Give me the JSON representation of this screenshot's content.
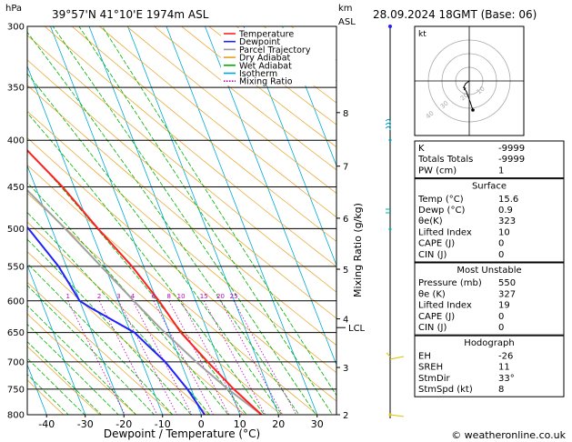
{
  "header": {
    "location": "39°57'N  41°10'E  1974m  ASL",
    "datetime": "28.09.2024  18GMT  (Base: 06)",
    "hpa_label": "hPa",
    "km_label": "km",
    "asl_label": "ASL"
  },
  "footer": {
    "copyright": "© weatheronline.co.uk"
  },
  "chart_data": {
    "type": "skew-t",
    "xlabel": "Dewpoint / Temperature (°C)",
    "right_axis_label": "Mixing Ratio (g/kg)",
    "x_range": [
      -45,
      35
    ],
    "p_range": [
      300,
      800
    ],
    "x_ticks": [
      -40,
      -30,
      -20,
      -10,
      0,
      10,
      20,
      30
    ],
    "pressure_levels": [
      300,
      350,
      400,
      450,
      500,
      550,
      600,
      650,
      700,
      750,
      800
    ],
    "km_ticks": [
      {
        "label": "8",
        "p": 373
      },
      {
        "label": "7",
        "p": 427
      },
      {
        "label": "6",
        "p": 487
      },
      {
        "label": "5",
        "p": 554
      },
      {
        "label": "4",
        "p": 628
      },
      {
        "label": "3",
        "p": 710
      },
      {
        "label": "2",
        "p": 800
      }
    ],
    "lcl": {
      "label": "LCL",
      "p": 642
    },
    "mixing_ratio_labels": [
      "1",
      "2",
      "3",
      "4",
      "6",
      "8",
      "10",
      "15",
      "20",
      "25"
    ],
    "legend": [
      {
        "name": "Temperature",
        "color": "#ff2020",
        "style": "solid"
      },
      {
        "name": "Dewpoint",
        "color": "#2020ff",
        "style": "solid"
      },
      {
        "name": "Parcel Trajectory",
        "color": "#999999",
        "style": "solid"
      },
      {
        "name": "Dry Adiabat",
        "color": "#e8a020",
        "style": "solid"
      },
      {
        "name": "Wet Adiabat",
        "color": "#00b000",
        "style": "solid"
      },
      {
        "name": "Isotherm",
        "color": "#00a8d8",
        "style": "solid"
      },
      {
        "name": "Mixing Ratio",
        "color": "#c000c0",
        "style": "dotted"
      }
    ],
    "legend_placement": "top-right of plot",
    "temperature": [
      {
        "p": 800,
        "t": 15.6
      },
      {
        "p": 750,
        "t": 11
      },
      {
        "p": 700,
        "t": 7
      },
      {
        "p": 650,
        "t": 3
      },
      {
        "p": 600,
        "t": 0.5
      },
      {
        "p": 550,
        "t": -3
      },
      {
        "p": 500,
        "t": -8
      },
      {
        "p": 450,
        "t": -13
      },
      {
        "p": 400,
        "t": -20
      },
      {
        "p": 350,
        "t": -28
      },
      {
        "p": 300,
        "t": -37
      }
    ],
    "dewpoint": [
      {
        "p": 800,
        "t": 0.9
      },
      {
        "p": 750,
        "t": -1
      },
      {
        "p": 700,
        "t": -4
      },
      {
        "p": 670,
        "t": -7
      },
      {
        "p": 650,
        "t": -9
      },
      {
        "p": 610,
        "t": -18
      },
      {
        "p": 600,
        "t": -20
      },
      {
        "p": 550,
        "t": -22
      },
      {
        "p": 500,
        "t": -26
      },
      {
        "p": 450,
        "t": -32
      },
      {
        "p": 400,
        "t": -40
      },
      {
        "p": 350,
        "t": -43
      },
      {
        "p": 300,
        "t": -50
      }
    ],
    "parcel": [
      {
        "p": 800,
        "t": 15.6
      },
      {
        "p": 750,
        "t": 9.5
      },
      {
        "p": 700,
        "t": 4
      },
      {
        "p": 642,
        "t": -2
      },
      {
        "p": 600,
        "t": -6
      },
      {
        "p": 550,
        "t": -11
      },
      {
        "p": 500,
        "t": -16.5
      },
      {
        "p": 450,
        "t": -23
      },
      {
        "p": 400,
        "t": -30.5
      },
      {
        "p": 350,
        "t": -39
      },
      {
        "p": 300,
        "t": -48
      }
    ],
    "grid": true
  },
  "hodograph": {
    "unit": "kt",
    "ring_labels": [
      "10",
      "20",
      "30",
      "40"
    ]
  },
  "indices": {
    "rows": [
      {
        "label": "K",
        "value": "-9999"
      },
      {
        "label": "Totals Totals",
        "value": "-9999"
      },
      {
        "label": "PW (cm)",
        "value": "1"
      }
    ]
  },
  "surface": {
    "title": "Surface",
    "rows": [
      {
        "label": "Temp (°C)",
        "value": "15.6"
      },
      {
        "label": "Dewp (°C)",
        "value": "0.9"
      },
      {
        "label": "θe(K)",
        "value": "323"
      },
      {
        "label": "Lifted Index",
        "value": "10"
      },
      {
        "label": "CAPE (J)",
        "value": "0"
      },
      {
        "label": "CIN (J)",
        "value": "0"
      }
    ]
  },
  "most_unstable": {
    "title": "Most Unstable",
    "rows": [
      {
        "label": "Pressure (mb)",
        "value": "550"
      },
      {
        "label": "θe (K)",
        "value": "327"
      },
      {
        "label": "Lifted Index",
        "value": "19"
      },
      {
        "label": "CAPE (J)",
        "value": "0"
      },
      {
        "label": "CIN (J)",
        "value": "0"
      }
    ]
  },
  "hodograph_stats": {
    "title": "Hodograph",
    "rows": [
      {
        "label": "EH",
        "value": "-26"
      },
      {
        "label": "SREH",
        "value": "11"
      },
      {
        "label": "StmDir",
        "value": "33°"
      },
      {
        "label": "StmSpd (kt)",
        "value": "8"
      }
    ]
  }
}
